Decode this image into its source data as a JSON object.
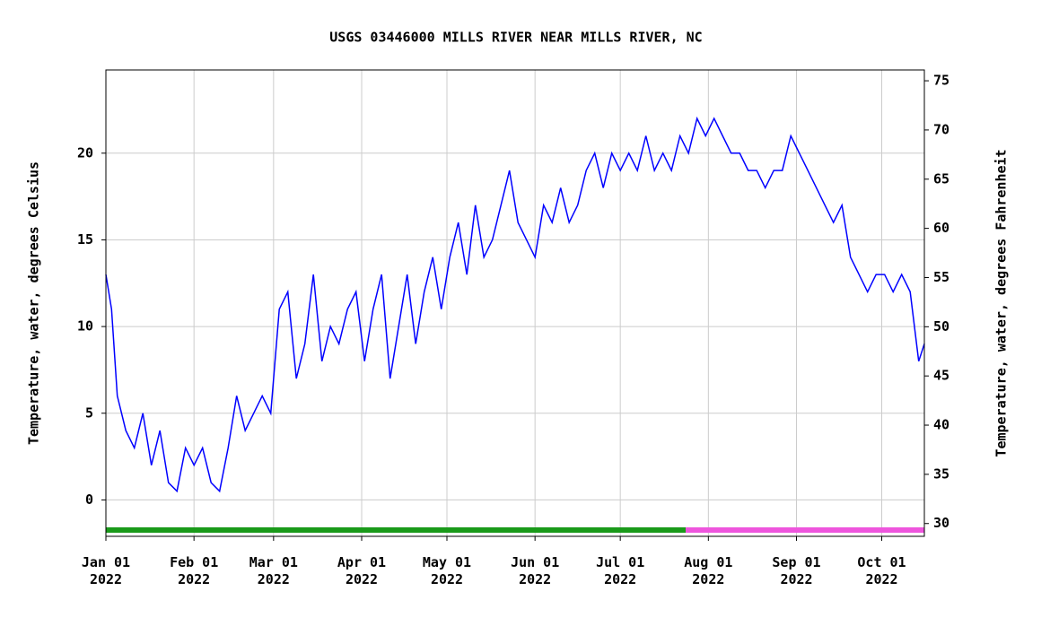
{
  "chart_data": {
    "type": "line",
    "title": "USGS 03446000 MILLS RIVER NEAR MILLS RIVER, NC",
    "ylabel": "Temperature, water, degrees Celsius",
    "y2label": "Temperature, water, degrees Fahrenheit",
    "xlim": [
      "2022-01-01",
      "2022-10-16"
    ],
    "xticks": [
      {
        "value": "2022-01-01",
        "label": "Jan 01\n2022"
      },
      {
        "value": "2022-02-01",
        "label": "Feb 01\n2022"
      },
      {
        "value": "2022-03-01",
        "label": "Mar 01\n2022"
      },
      {
        "value": "2022-04-01",
        "label": "Apr 01\n2022"
      },
      {
        "value": "2022-05-01",
        "label": "May 01\n2022"
      },
      {
        "value": "2022-06-01",
        "label": "Jun 01\n2022"
      },
      {
        "value": "2022-07-01",
        "label": "Jul 01\n2022"
      },
      {
        "value": "2022-08-01",
        "label": "Aug 01\n2022"
      },
      {
        "value": "2022-09-01",
        "label": "Sep 01\n2022"
      },
      {
        "value": "2022-10-01",
        "label": "Oct 01\n2022"
      }
    ],
    "ylim": [
      -2.1,
      24.8
    ],
    "yticks": [
      0,
      5,
      10,
      15,
      20
    ],
    "y2lim": [
      28.7,
      76.1
    ],
    "y2ticks": [
      30,
      35,
      40,
      45,
      50,
      55,
      60,
      65,
      70,
      75
    ],
    "grid": true,
    "status_bands": [
      {
        "start": "2022-01-01",
        "end": "2022-07-24",
        "color": "#1a9a1a"
      },
      {
        "start": "2022-07-24",
        "end": "2022-10-16",
        "color": "#ee55dd"
      }
    ],
    "x": [
      "2022-01-01",
      "2022-01-03",
      "2022-01-05",
      "2022-01-08",
      "2022-01-11",
      "2022-01-14",
      "2022-01-17",
      "2022-01-20",
      "2022-01-23",
      "2022-01-26",
      "2022-01-29",
      "2022-02-01",
      "2022-02-04",
      "2022-02-07",
      "2022-02-10",
      "2022-02-13",
      "2022-02-16",
      "2022-02-19",
      "2022-02-22",
      "2022-02-25",
      "2022-02-28",
      "2022-03-03",
      "2022-03-06",
      "2022-03-09",
      "2022-03-12",
      "2022-03-15",
      "2022-03-18",
      "2022-03-21",
      "2022-03-24",
      "2022-03-27",
      "2022-03-30",
      "2022-04-02",
      "2022-04-05",
      "2022-04-08",
      "2022-04-11",
      "2022-04-14",
      "2022-04-17",
      "2022-04-20",
      "2022-04-23",
      "2022-04-26",
      "2022-04-29",
      "2022-05-02",
      "2022-05-05",
      "2022-05-08",
      "2022-05-11",
      "2022-05-14",
      "2022-05-17",
      "2022-05-20",
      "2022-05-23",
      "2022-05-26",
      "2022-05-29",
      "2022-06-01",
      "2022-06-04",
      "2022-06-07",
      "2022-06-10",
      "2022-06-13",
      "2022-06-16",
      "2022-06-19",
      "2022-06-22",
      "2022-06-25",
      "2022-06-28",
      "2022-07-01",
      "2022-07-04",
      "2022-07-07",
      "2022-07-10",
      "2022-07-13",
      "2022-07-16",
      "2022-07-19",
      "2022-07-22",
      "2022-07-25",
      "2022-07-28",
      "2022-07-31",
      "2022-08-03",
      "2022-08-06",
      "2022-08-09",
      "2022-08-12",
      "2022-08-15",
      "2022-08-18",
      "2022-08-21",
      "2022-08-24",
      "2022-08-27",
      "2022-08-30",
      "2022-09-02",
      "2022-09-05",
      "2022-09-08",
      "2022-09-11",
      "2022-09-14",
      "2022-09-17",
      "2022-09-20",
      "2022-09-23",
      "2022-09-26",
      "2022-09-29",
      "2022-10-02",
      "2022-10-05",
      "2022-10-08",
      "2022-10-11",
      "2022-10-14",
      "2022-10-16"
    ],
    "series": [
      {
        "name": "Temperature",
        "color": "#0000ff",
        "values": [
          13,
          11,
          6,
          4,
          3,
          5,
          2,
          4,
          1,
          0.5,
          3,
          2,
          3,
          1,
          0.5,
          3,
          6,
          4,
          5,
          6,
          5,
          11,
          12,
          7,
          9,
          13,
          8,
          10,
          9,
          11,
          12,
          8,
          11,
          13,
          7,
          10,
          13,
          9,
          12,
          14,
          11,
          14,
          16,
          13,
          17,
          14,
          15,
          17,
          19,
          16,
          15,
          14,
          17,
          16,
          18,
          16,
          17,
          19,
          20,
          18,
          20,
          19,
          20,
          19,
          21,
          19,
          20,
          19,
          21,
          20,
          22,
          21,
          22,
          21,
          20,
          20,
          19,
          19,
          18,
          19,
          19,
          21,
          20,
          19,
          18,
          17,
          16,
          17,
          14,
          13,
          12,
          13,
          13,
          12,
          13,
          12,
          8,
          9
        ]
      }
    ]
  }
}
